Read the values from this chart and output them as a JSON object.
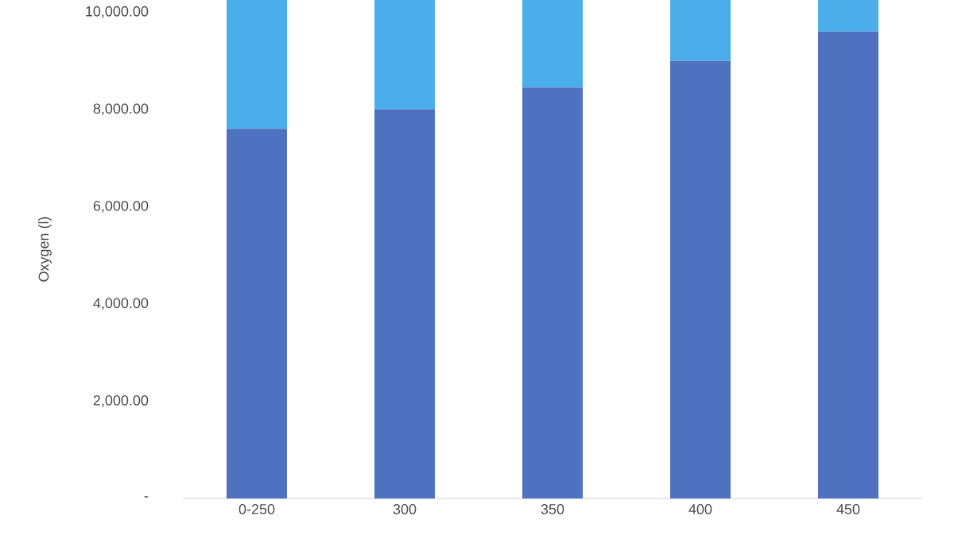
{
  "chart_data": {
    "type": "bar",
    "stacked": true,
    "ylabel": "Oxygen (l)",
    "categories": [
      "0-250",
      "300",
      "350",
      "400",
      "450"
    ],
    "series": [
      {
        "color": "#4e72bf",
        "values": [
          7600,
          8000,
          8450,
          9000,
          9600
        ]
      },
      {
        "color": "#4baeea",
        "values": [
          2650,
          2250,
          1800,
          1250,
          650
        ]
      }
    ],
    "ylim": [
      0,
      10250
    ],
    "yticks": [
      {
        "value": 0,
        "label": "-"
      },
      {
        "value": 2000,
        "label": "2,000.00"
      },
      {
        "value": 4000,
        "label": "4,000.00"
      },
      {
        "value": 6000,
        "label": "6,000.00"
      },
      {
        "value": 8000,
        "label": "8,000.00"
      },
      {
        "value": 10000,
        "label": "10,000.00"
      }
    ]
  }
}
